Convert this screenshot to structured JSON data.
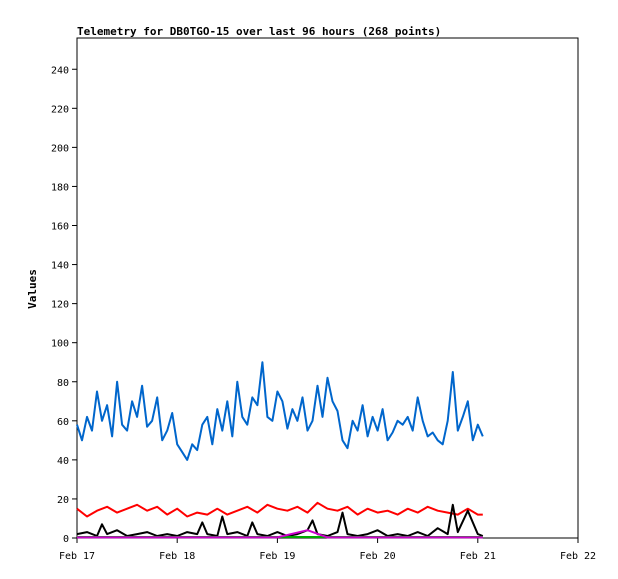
{
  "chart_data": {
    "type": "line",
    "title": "Telemetry for DB0TGO-15 over last 96 hours (268 points)",
    "xlabel": "",
    "ylabel": "Values",
    "x_ticks": [
      "Feb 17",
      "Feb 18",
      "Feb 19",
      "Feb 20",
      "Feb 21",
      "Feb 22"
    ],
    "y_ticks": [
      0,
      20,
      40,
      60,
      80,
      100,
      120,
      140,
      160,
      180,
      200,
      220,
      240
    ],
    "xlim": [
      0,
      5
    ],
    "ylim": [
      0,
      256
    ],
    "grid": false,
    "legend": "none",
    "series": [
      {
        "color": "#0066cc",
        "x": [
          0.0,
          0.05,
          0.1,
          0.15,
          0.2,
          0.25,
          0.3,
          0.35,
          0.4,
          0.45,
          0.5,
          0.55,
          0.6,
          0.65,
          0.7,
          0.75,
          0.8,
          0.85,
          0.9,
          0.95,
          1.0,
          1.05,
          1.1,
          1.15,
          1.2,
          1.25,
          1.3,
          1.35,
          1.4,
          1.45,
          1.5,
          1.55,
          1.6,
          1.65,
          1.7,
          1.75,
          1.8,
          1.85,
          1.9,
          1.95,
          2.0,
          2.05,
          2.1,
          2.15,
          2.2,
          2.25,
          2.3,
          2.35,
          2.4,
          2.45,
          2.5,
          2.55,
          2.6,
          2.65,
          2.7,
          2.75,
          2.8,
          2.85,
          2.9,
          2.95,
          3.0,
          3.05,
          3.1,
          3.15,
          3.2,
          3.25,
          3.3,
          3.35,
          3.4,
          3.45,
          3.5,
          3.55,
          3.6,
          3.65,
          3.7,
          3.75,
          3.8,
          3.85,
          3.9,
          3.95,
          4.0,
          4.05
        ],
        "values": [
          58,
          50,
          62,
          55,
          75,
          60,
          68,
          52,
          80,
          58,
          55,
          70,
          62,
          78,
          57,
          60,
          72,
          50,
          55,
          64,
          48,
          44,
          40,
          48,
          45,
          58,
          62,
          48,
          66,
          55,
          70,
          52,
          80,
          62,
          58,
          72,
          68,
          90,
          62,
          60,
          75,
          70,
          56,
          66,
          60,
          72,
          55,
          60,
          78,
          62,
          82,
          70,
          65,
          50,
          46,
          60,
          55,
          68,
          52,
          62,
          55,
          66,
          50,
          54,
          60,
          58,
          62,
          55,
          72,
          60,
          52,
          54,
          50,
          48,
          60,
          85,
          55,
          62,
          70,
          50,
          58,
          52
        ],
        "name": ""
      },
      {
        "color": "#ff0000",
        "x": [
          0.0,
          0.1,
          0.2,
          0.3,
          0.4,
          0.5,
          0.6,
          0.7,
          0.8,
          0.9,
          1.0,
          1.1,
          1.2,
          1.3,
          1.4,
          1.5,
          1.6,
          1.7,
          1.8,
          1.9,
          2.0,
          2.1,
          2.2,
          2.3,
          2.4,
          2.5,
          2.6,
          2.7,
          2.8,
          2.9,
          3.0,
          3.1,
          3.2,
          3.3,
          3.4,
          3.5,
          3.6,
          3.7,
          3.8,
          3.9,
          4.0,
          4.05
        ],
        "values": [
          15,
          11,
          14,
          16,
          13,
          15,
          17,
          14,
          16,
          12,
          15,
          11,
          13,
          12,
          15,
          12,
          14,
          16,
          13,
          17,
          15,
          14,
          16,
          13,
          18,
          15,
          14,
          16,
          12,
          15,
          13,
          14,
          12,
          15,
          13,
          16,
          14,
          13,
          12,
          15,
          12,
          12
        ]
      },
      {
        "color": "#000000",
        "x": [
          0.0,
          0.1,
          0.2,
          0.25,
          0.3,
          0.4,
          0.5,
          0.6,
          0.7,
          0.8,
          0.9,
          1.0,
          1.1,
          1.2,
          1.25,
          1.3,
          1.4,
          1.45,
          1.5,
          1.6,
          1.7,
          1.75,
          1.8,
          1.9,
          2.0,
          2.1,
          2.2,
          2.3,
          2.35,
          2.4,
          2.5,
          2.6,
          2.65,
          2.7,
          2.8,
          2.9,
          3.0,
          3.1,
          3.2,
          3.3,
          3.4,
          3.5,
          3.6,
          3.7,
          3.75,
          3.8,
          3.9,
          4.0,
          4.05
        ],
        "values": [
          2,
          3,
          1,
          7,
          2,
          4,
          1,
          2,
          3,
          1,
          2,
          1,
          3,
          2,
          8,
          2,
          1,
          11,
          2,
          3,
          1,
          8,
          2,
          1,
          3,
          1,
          2,
          4,
          9,
          2,
          1,
          3,
          13,
          2,
          1,
          2,
          4,
          1,
          2,
          1,
          3,
          1,
          5,
          2,
          17,
          3,
          14,
          2,
          1
        ]
      },
      {
        "color": "#00aa00",
        "x": [
          0.0,
          1.0,
          2.0,
          3.0,
          4.0,
          4.05
        ],
        "values": [
          0.5,
          0.5,
          0.5,
          0.5,
          0.5,
          0.5
        ]
      },
      {
        "color": "#cc00cc",
        "x": [
          0.0,
          0.5,
          1.0,
          1.5,
          2.0,
          2.3,
          2.5,
          3.0,
          3.5,
          4.0,
          4.05
        ],
        "values": [
          0.3,
          0.3,
          0.3,
          0.3,
          0.3,
          4,
          0.3,
          0.3,
          0.3,
          0.3,
          0.3
        ]
      }
    ]
  }
}
